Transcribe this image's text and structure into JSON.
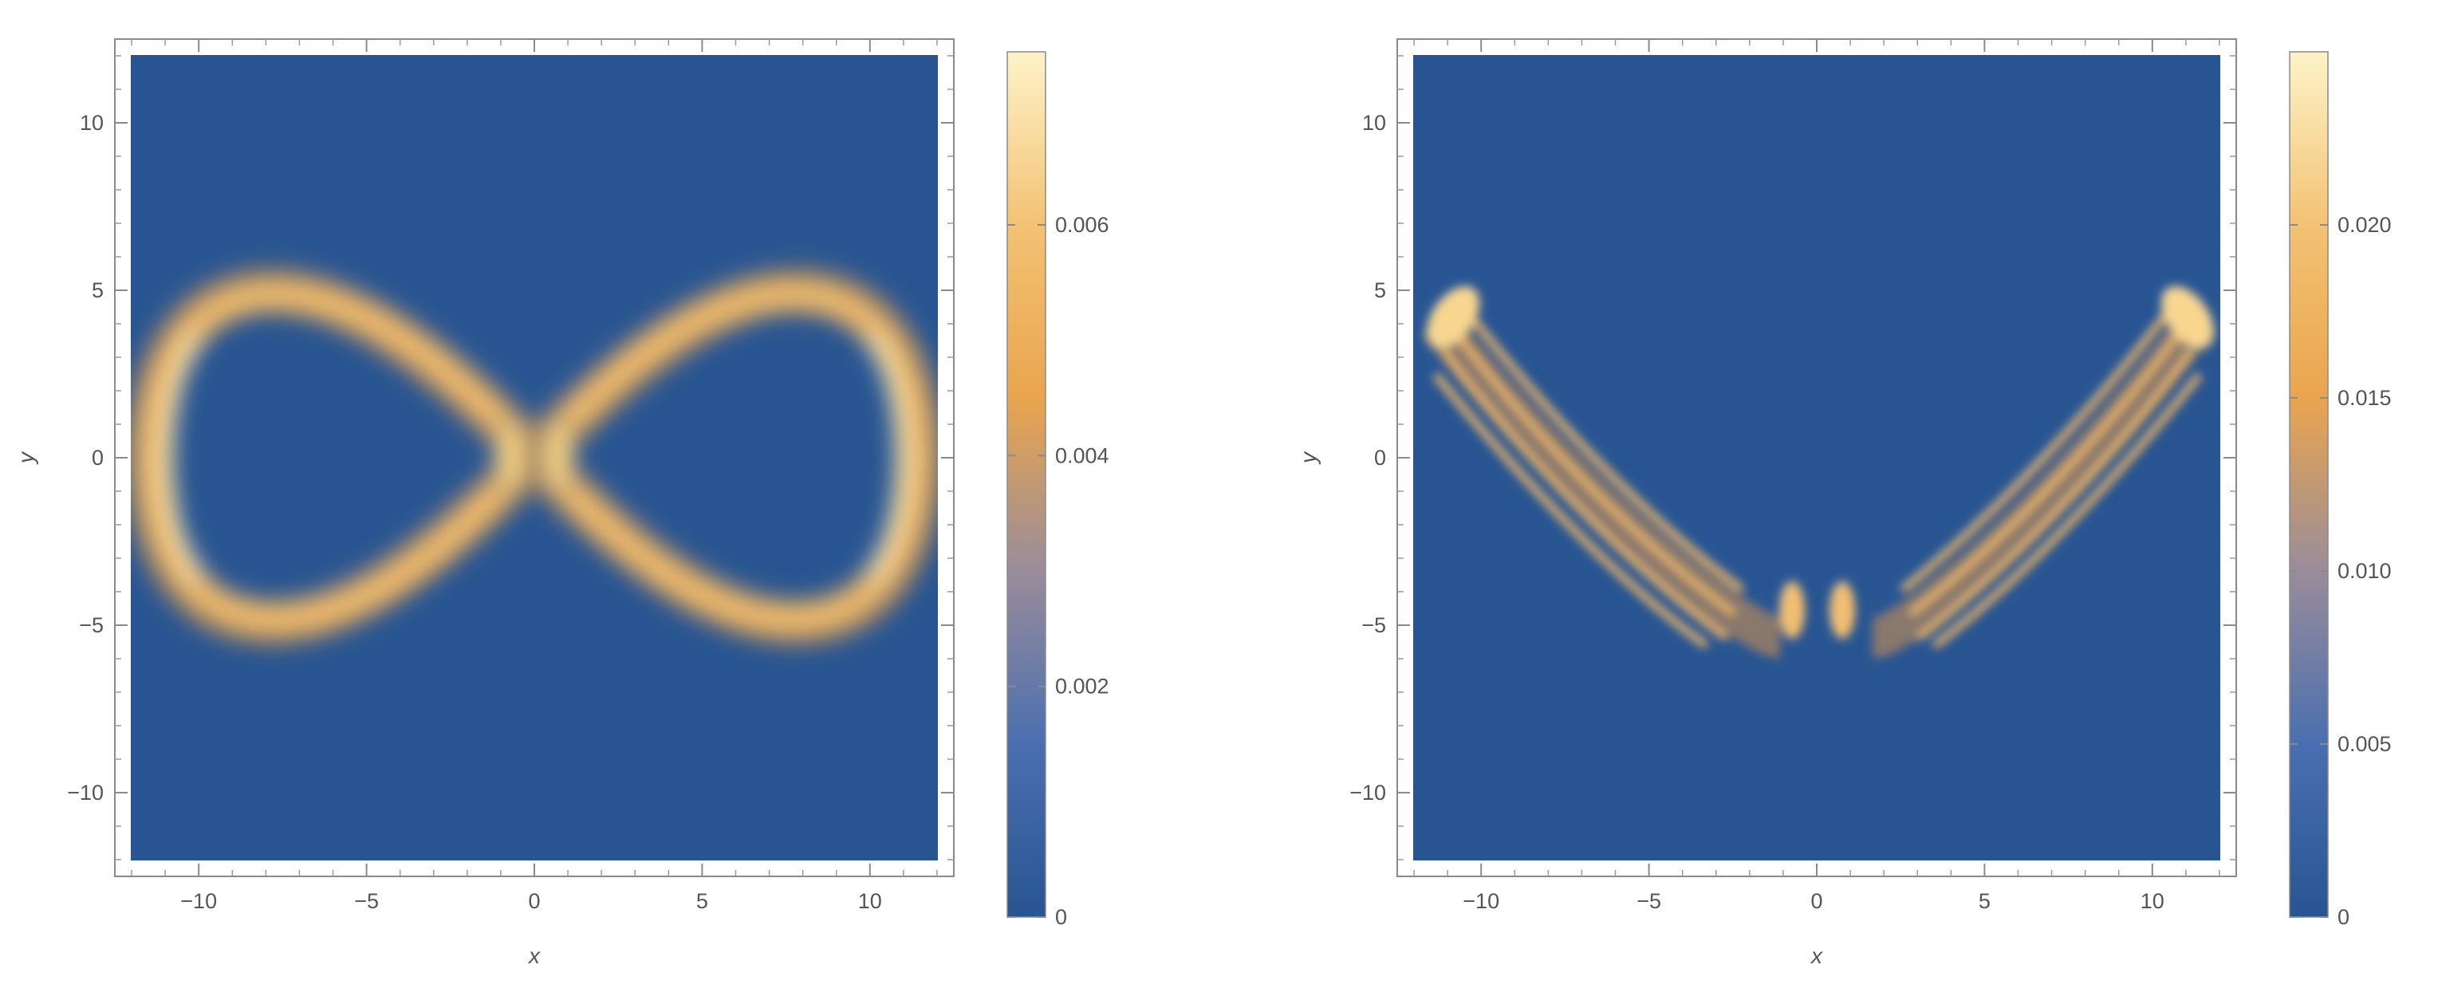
{
  "chart_data": [
    {
      "type": "heatmap",
      "title": "",
      "xlabel": "x",
      "ylabel": "y",
      "xlim": [
        -12.5,
        12.5
      ],
      "ylim": [
        -12.5,
        12.5
      ],
      "xticks": [
        -10,
        -5,
        0,
        5,
        10
      ],
      "yticks": [
        -10,
        -5,
        0,
        5,
        10
      ],
      "xtick_labels": [
        "−10",
        "−5",
        "0",
        "5",
        "10"
      ],
      "ytick_labels": [
        "−10",
        "−5",
        "0",
        "5",
        "10"
      ],
      "data_extent": [
        -12,
        12,
        -12,
        12
      ],
      "colormap": [
        "#285592",
        "#4a6fb0",
        "#9a8c9a",
        "#e9a54e",
        "#f3c274",
        "#fdf3c8"
      ],
      "background_color": "#285592",
      "color_range": [
        0,
        0.0075
      ],
      "colorbar_ticks": [
        0,
        0.002,
        0.004,
        0.006
      ],
      "colorbar_tick_labels": [
        "0",
        "0.002",
        "0.004",
        "0.006"
      ],
      "shape": "figure-eight lemniscate ring centred at origin, lobes spanning x ≈ ±11.5 and y ≈ ±5",
      "features": [
        {
          "x": 11.3,
          "y": 0,
          "value": 0.0072
        },
        {
          "x": -11.3,
          "y": 0,
          "value": 0.007
        },
        {
          "x": 10.2,
          "y": 3.6,
          "value": 0.0068
        },
        {
          "x": -10.2,
          "y": 3.6,
          "value": 0.0065
        },
        {
          "x": 10.2,
          "y": -3.6,
          "value": 0.007
        },
        {
          "x": -10.2,
          "y": -3.6,
          "value": 0.0066
        },
        {
          "x": 7.3,
          "y": 4.9,
          "value": 0.005
        },
        {
          "x": -7.3,
          "y": 4.9,
          "value": 0.0048
        },
        {
          "x": 7.3,
          "y": -4.9,
          "value": 0.0052
        },
        {
          "x": -7.3,
          "y": -4.9,
          "value": 0.005
        },
        {
          "x": 3.5,
          "y": 2.8,
          "value": 0.0035
        },
        {
          "x": -3.5,
          "y": 2.8,
          "value": 0.0035
        },
        {
          "x": 3.5,
          "y": -2.8,
          "value": 0.0035
        },
        {
          "x": -3.5,
          "y": -2.8,
          "value": 0.0035
        },
        {
          "x": 0.8,
          "y": 0,
          "value": 0.0065
        },
        {
          "x": -0.8,
          "y": 0,
          "value": 0.0065
        }
      ]
    },
    {
      "type": "heatmap",
      "title": "",
      "xlabel": "x",
      "ylabel": "y",
      "xlim": [
        -12.5,
        12.5
      ],
      "ylim": [
        -12.5,
        12.5
      ],
      "xticks": [
        -10,
        -5,
        0,
        5,
        10
      ],
      "yticks": [
        -10,
        -5,
        0,
        5,
        10
      ],
      "xtick_labels": [
        "−10",
        "−5",
        "0",
        "5",
        "10"
      ],
      "ytick_labels": [
        "−10",
        "−5",
        "0",
        "5",
        "10"
      ],
      "data_extent": [
        -12,
        12,
        -12,
        12
      ],
      "colormap": [
        "#285592",
        "#4a6fb0",
        "#9a8c9a",
        "#e9a54e",
        "#f3c274",
        "#fdf3c8"
      ],
      "background_color": "#285592",
      "color_range": [
        0,
        0.025
      ],
      "colorbar_ticks": [
        0,
        0.005,
        0.01,
        0.015,
        0.02
      ],
      "colorbar_tick_labels": [
        "0",
        "0.005",
        "0.010",
        "0.015",
        "0.020"
      ],
      "shape": "V-shaped bands of interference fringes from (±11, 4.5) down to (±0.6, −4.6)",
      "features": [
        {
          "x": -10.6,
          "y": 4.3,
          "value": 0.024
        },
        {
          "x": 11.0,
          "y": 4.3,
          "value": 0.024
        },
        {
          "x": -8.0,
          "y": 1.0,
          "value": 0.016
        },
        {
          "x": 8.5,
          "y": 1.8,
          "value": 0.016
        },
        {
          "x": -5.5,
          "y": -1.5,
          "value": 0.014
        },
        {
          "x": 5.5,
          "y": -1.5,
          "value": 0.014
        },
        {
          "x": -3.0,
          "y": -4.0,
          "value": 0.015
        },
        {
          "x": 3.0,
          "y": -4.0,
          "value": 0.015
        },
        {
          "x": -0.6,
          "y": -4.6,
          "value": 0.017
        },
        {
          "x": 0.6,
          "y": -4.6,
          "value": 0.017
        }
      ]
    }
  ]
}
